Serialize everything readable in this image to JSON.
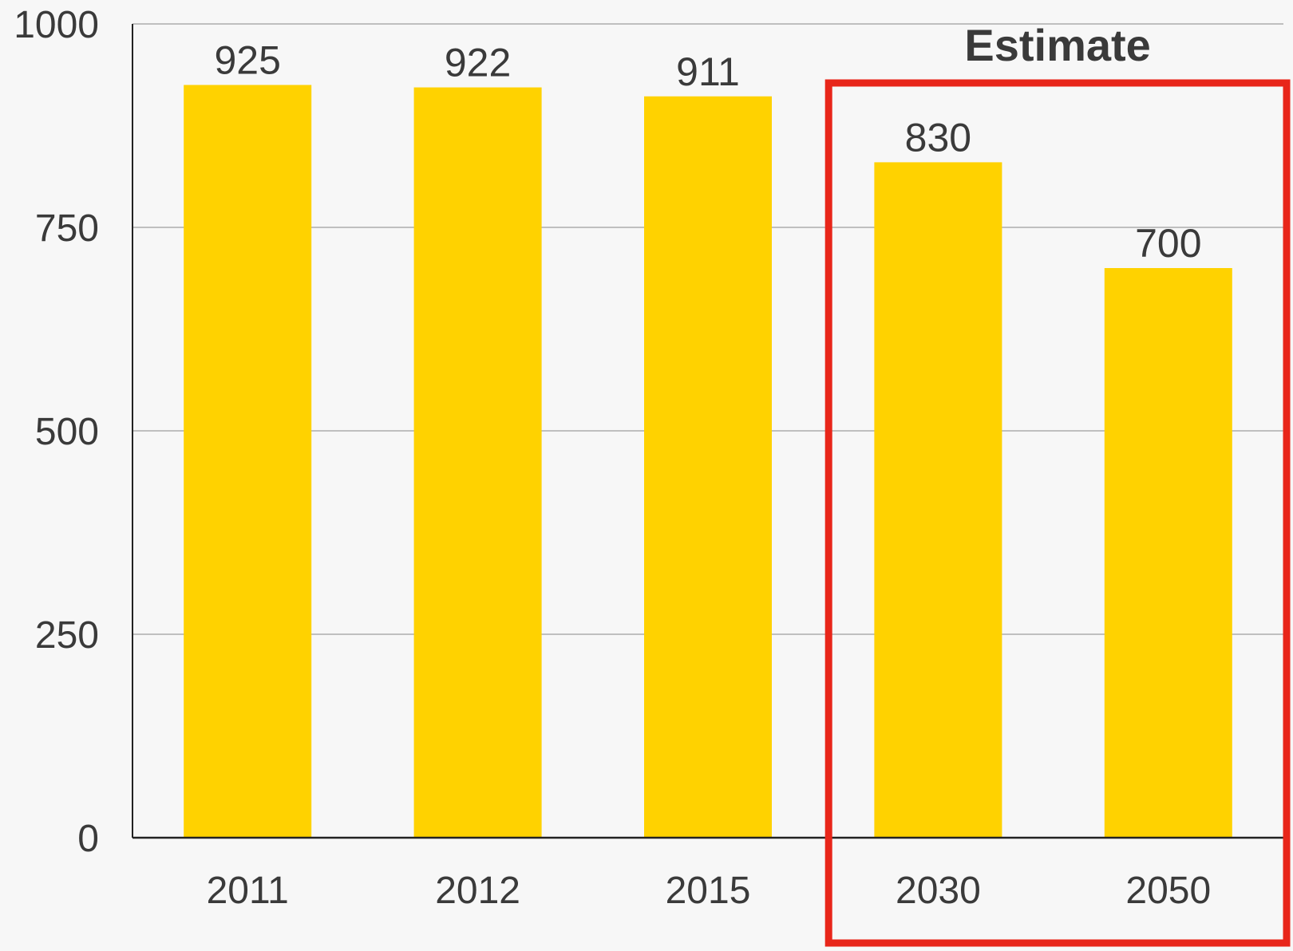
{
  "chart_data": {
    "type": "bar",
    "categories": [
      "2011",
      "2012",
      "2015",
      "2030",
      "2050"
    ],
    "values": [
      925,
      922,
      911,
      830,
      700
    ],
    "data_labels": [
      "925",
      "922",
      "911",
      "830",
      "700"
    ],
    "ylim": [
      0,
      1000
    ],
    "yticks": [
      "0",
      "250",
      "500",
      "750",
      "1000"
    ],
    "ytick_values": [
      0,
      250,
      500,
      750,
      1000
    ],
    "grid": true,
    "annotation": {
      "text": "Estimate",
      "highlighted_categories": [
        "2030",
        "2050"
      ]
    },
    "colors": {
      "bar": "#ffd200",
      "highlight_box": "#e8261a",
      "grid": "#bfbfbf",
      "axis": "#222222",
      "background": "#f7f7f7"
    }
  }
}
